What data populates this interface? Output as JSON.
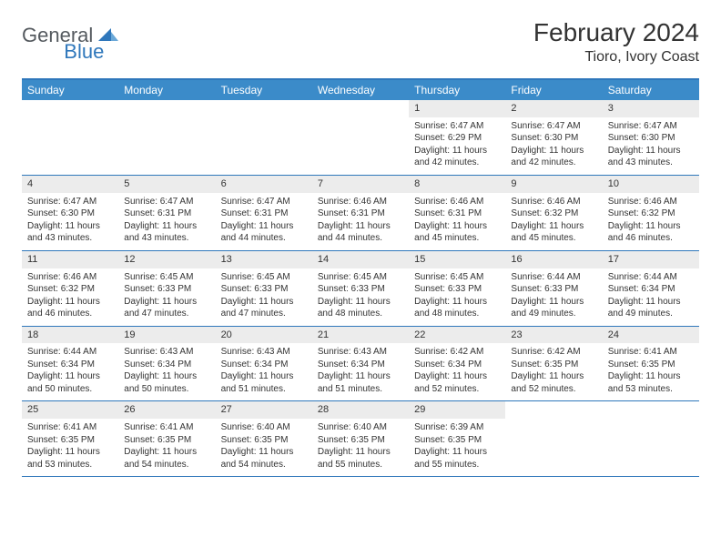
{
  "logo": {
    "text1": "General",
    "text2": "Blue",
    "text1_color": "#555a5f",
    "text2_color": "#2f77bb"
  },
  "title": "February 2024",
  "location": "Tioro, Ivory Coast",
  "colors": {
    "header_bar": "#3b8bc9",
    "border": "#2f77bb",
    "daynum_bg": "#ececec",
    "text": "#333333",
    "bg": "#ffffff"
  },
  "fonts": {
    "title_size": 28,
    "location_size": 16,
    "weekday_size": 12,
    "cell_size": 10
  },
  "weekdays": [
    "Sunday",
    "Monday",
    "Tuesday",
    "Wednesday",
    "Thursday",
    "Friday",
    "Saturday"
  ],
  "weeks": [
    [
      null,
      null,
      null,
      null,
      {
        "n": "1",
        "sunrise": "6:47 AM",
        "sunset": "6:29 PM",
        "daylight": "11 hours and 42 minutes."
      },
      {
        "n": "2",
        "sunrise": "6:47 AM",
        "sunset": "6:30 PM",
        "daylight": "11 hours and 42 minutes."
      },
      {
        "n": "3",
        "sunrise": "6:47 AM",
        "sunset": "6:30 PM",
        "daylight": "11 hours and 43 minutes."
      }
    ],
    [
      {
        "n": "4",
        "sunrise": "6:47 AM",
        "sunset": "6:30 PM",
        "daylight": "11 hours and 43 minutes."
      },
      {
        "n": "5",
        "sunrise": "6:47 AM",
        "sunset": "6:31 PM",
        "daylight": "11 hours and 43 minutes."
      },
      {
        "n": "6",
        "sunrise": "6:47 AM",
        "sunset": "6:31 PM",
        "daylight": "11 hours and 44 minutes."
      },
      {
        "n": "7",
        "sunrise": "6:46 AM",
        "sunset": "6:31 PM",
        "daylight": "11 hours and 44 minutes."
      },
      {
        "n": "8",
        "sunrise": "6:46 AM",
        "sunset": "6:31 PM",
        "daylight": "11 hours and 45 minutes."
      },
      {
        "n": "9",
        "sunrise": "6:46 AM",
        "sunset": "6:32 PM",
        "daylight": "11 hours and 45 minutes."
      },
      {
        "n": "10",
        "sunrise": "6:46 AM",
        "sunset": "6:32 PM",
        "daylight": "11 hours and 46 minutes."
      }
    ],
    [
      {
        "n": "11",
        "sunrise": "6:46 AM",
        "sunset": "6:32 PM",
        "daylight": "11 hours and 46 minutes."
      },
      {
        "n": "12",
        "sunrise": "6:45 AM",
        "sunset": "6:33 PM",
        "daylight": "11 hours and 47 minutes."
      },
      {
        "n": "13",
        "sunrise": "6:45 AM",
        "sunset": "6:33 PM",
        "daylight": "11 hours and 47 minutes."
      },
      {
        "n": "14",
        "sunrise": "6:45 AM",
        "sunset": "6:33 PM",
        "daylight": "11 hours and 48 minutes."
      },
      {
        "n": "15",
        "sunrise": "6:45 AM",
        "sunset": "6:33 PM",
        "daylight": "11 hours and 48 minutes."
      },
      {
        "n": "16",
        "sunrise": "6:44 AM",
        "sunset": "6:33 PM",
        "daylight": "11 hours and 49 minutes."
      },
      {
        "n": "17",
        "sunrise": "6:44 AM",
        "sunset": "6:34 PM",
        "daylight": "11 hours and 49 minutes."
      }
    ],
    [
      {
        "n": "18",
        "sunrise": "6:44 AM",
        "sunset": "6:34 PM",
        "daylight": "11 hours and 50 minutes."
      },
      {
        "n": "19",
        "sunrise": "6:43 AM",
        "sunset": "6:34 PM",
        "daylight": "11 hours and 50 minutes."
      },
      {
        "n": "20",
        "sunrise": "6:43 AM",
        "sunset": "6:34 PM",
        "daylight": "11 hours and 51 minutes."
      },
      {
        "n": "21",
        "sunrise": "6:43 AM",
        "sunset": "6:34 PM",
        "daylight": "11 hours and 51 minutes."
      },
      {
        "n": "22",
        "sunrise": "6:42 AM",
        "sunset": "6:34 PM",
        "daylight": "11 hours and 52 minutes."
      },
      {
        "n": "23",
        "sunrise": "6:42 AM",
        "sunset": "6:35 PM",
        "daylight": "11 hours and 52 minutes."
      },
      {
        "n": "24",
        "sunrise": "6:41 AM",
        "sunset": "6:35 PM",
        "daylight": "11 hours and 53 minutes."
      }
    ],
    [
      {
        "n": "25",
        "sunrise": "6:41 AM",
        "sunset": "6:35 PM",
        "daylight": "11 hours and 53 minutes."
      },
      {
        "n": "26",
        "sunrise": "6:41 AM",
        "sunset": "6:35 PM",
        "daylight": "11 hours and 54 minutes."
      },
      {
        "n": "27",
        "sunrise": "6:40 AM",
        "sunset": "6:35 PM",
        "daylight": "11 hours and 54 minutes."
      },
      {
        "n": "28",
        "sunrise": "6:40 AM",
        "sunset": "6:35 PM",
        "daylight": "11 hours and 55 minutes."
      },
      {
        "n": "29",
        "sunrise": "6:39 AM",
        "sunset": "6:35 PM",
        "daylight": "11 hours and 55 minutes."
      },
      null,
      null
    ]
  ],
  "labels": {
    "sunrise": "Sunrise:",
    "sunset": "Sunset:",
    "daylight": "Daylight:"
  }
}
